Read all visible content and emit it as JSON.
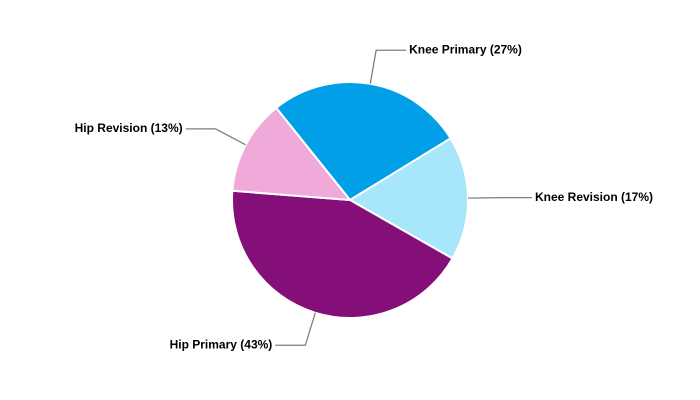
{
  "chart_data": {
    "type": "pie",
    "values": [
      27,
      17,
      43,
      13
    ],
    "value_labels": [
      "Knee Primary (27%)",
      "Knee Revision (17%)",
      "Hip Primary (43%)",
      "Hip Revision (13%)"
    ],
    "colors": [
      "#009fe8",
      "#a8e6fc",
      "#850f78",
      "#f0aad9"
    ]
  }
}
